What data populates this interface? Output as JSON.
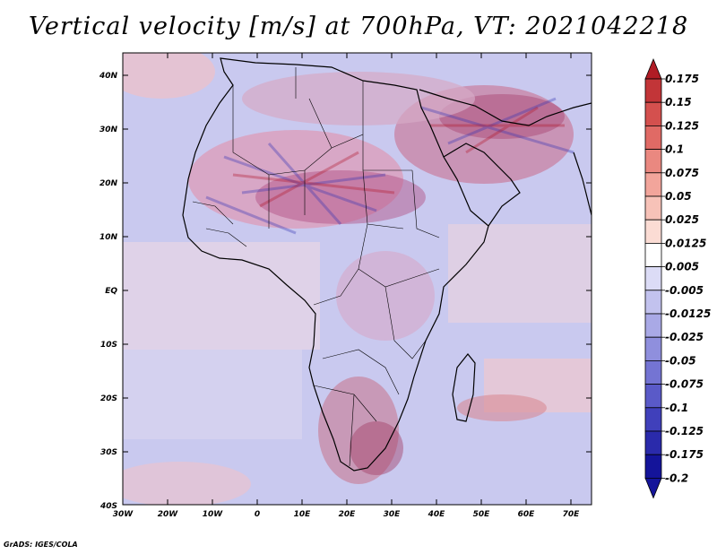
{
  "title": "Vertical velocity [m/s] at 700hPa, VT: 2021042218",
  "credit": "GrADS: IGES/COLA",
  "map": {
    "lon_labels": [
      "30W",
      "20W",
      "10W",
      "0",
      "10E",
      "20E",
      "30E",
      "40E",
      "50E",
      "60E",
      "70E"
    ],
    "lat_labels": [
      "40N",
      "30N",
      "20N",
      "10N",
      "EQ",
      "10S",
      "20S",
      "30S",
      "40S"
    ]
  },
  "colorbar": {
    "labels": [
      "0.175",
      "0.15",
      "0.125",
      "0.1",
      "0.075",
      "0.05",
      "0.025",
      "0.0125",
      "0.005",
      "-0.005",
      "-0.0125",
      "-0.025",
      "-0.05",
      "-0.075",
      "-0.1",
      "-0.125",
      "-0.175",
      "-0.2"
    ],
    "colors": [
      "#b01c25",
      "#c23538",
      "#d4504e",
      "#e06a65",
      "#ea8880",
      "#f2a59b",
      "#f7c2b8",
      "#fbdcd4",
      "#ffffff",
      "#dcdcf6",
      "#c2c2ee",
      "#a9a9e6",
      "#8f8fdd",
      "#7474d3",
      "#5a5ac8",
      "#4040bb",
      "#2a2aab",
      "#14149a"
    ]
  }
}
